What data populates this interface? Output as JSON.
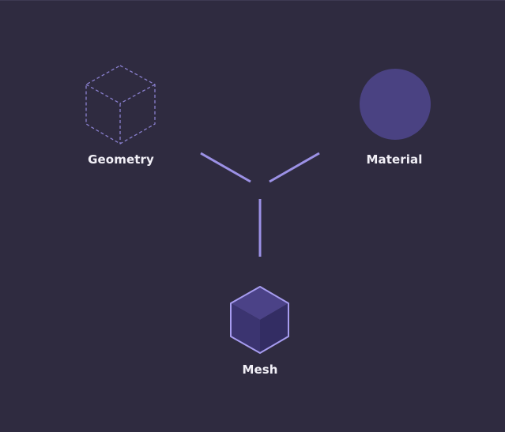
{
  "nodes": {
    "geometry": {
      "label": "Geometry",
      "icon": "wireframe-cube-icon"
    },
    "material": {
      "label": "Material",
      "icon": "solid-circle-icon"
    },
    "mesh": {
      "label": "Mesh",
      "icon": "solid-cube-icon"
    }
  },
  "colors": {
    "background": "#2f2b40",
    "line": "#9c91e6",
    "wireframe": "#8a80cf",
    "material_fill": "#4a4282",
    "mesh_top": "#4b4287",
    "mesh_left": "#3b3470",
    "mesh_right": "#332d63",
    "mesh_edge": "#a79cf0",
    "label": "#f2f0f7"
  }
}
